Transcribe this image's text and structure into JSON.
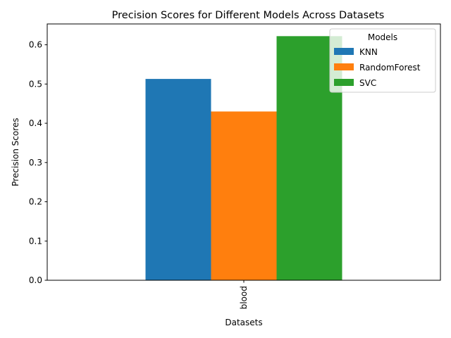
{
  "chart_data": {
    "type": "bar",
    "title": "Precision Scores for Different Models Across Datasets",
    "xlabel": "Datasets",
    "ylabel": "Precision Scores",
    "categories": [
      "blood"
    ],
    "series": [
      {
        "name": "KNN",
        "values": [
          0.513
        ],
        "color": "#1f77b4"
      },
      {
        "name": "RandomForest",
        "values": [
          0.43
        ],
        "color": "#ff7f0e"
      },
      {
        "name": "SVC",
        "values": [
          0.622
        ],
        "color": "#2ca02c"
      }
    ],
    "ylim": [
      0,
      0.6531
    ],
    "yticks": [
      0.0,
      0.1,
      0.2,
      0.3,
      0.4,
      0.5,
      0.6
    ],
    "ytick_labels": [
      "0.0",
      "0.1",
      "0.2",
      "0.3",
      "0.4",
      "0.5",
      "0.6"
    ],
    "grid": false,
    "legend": {
      "title": "Models",
      "placement": "top-right"
    }
  }
}
